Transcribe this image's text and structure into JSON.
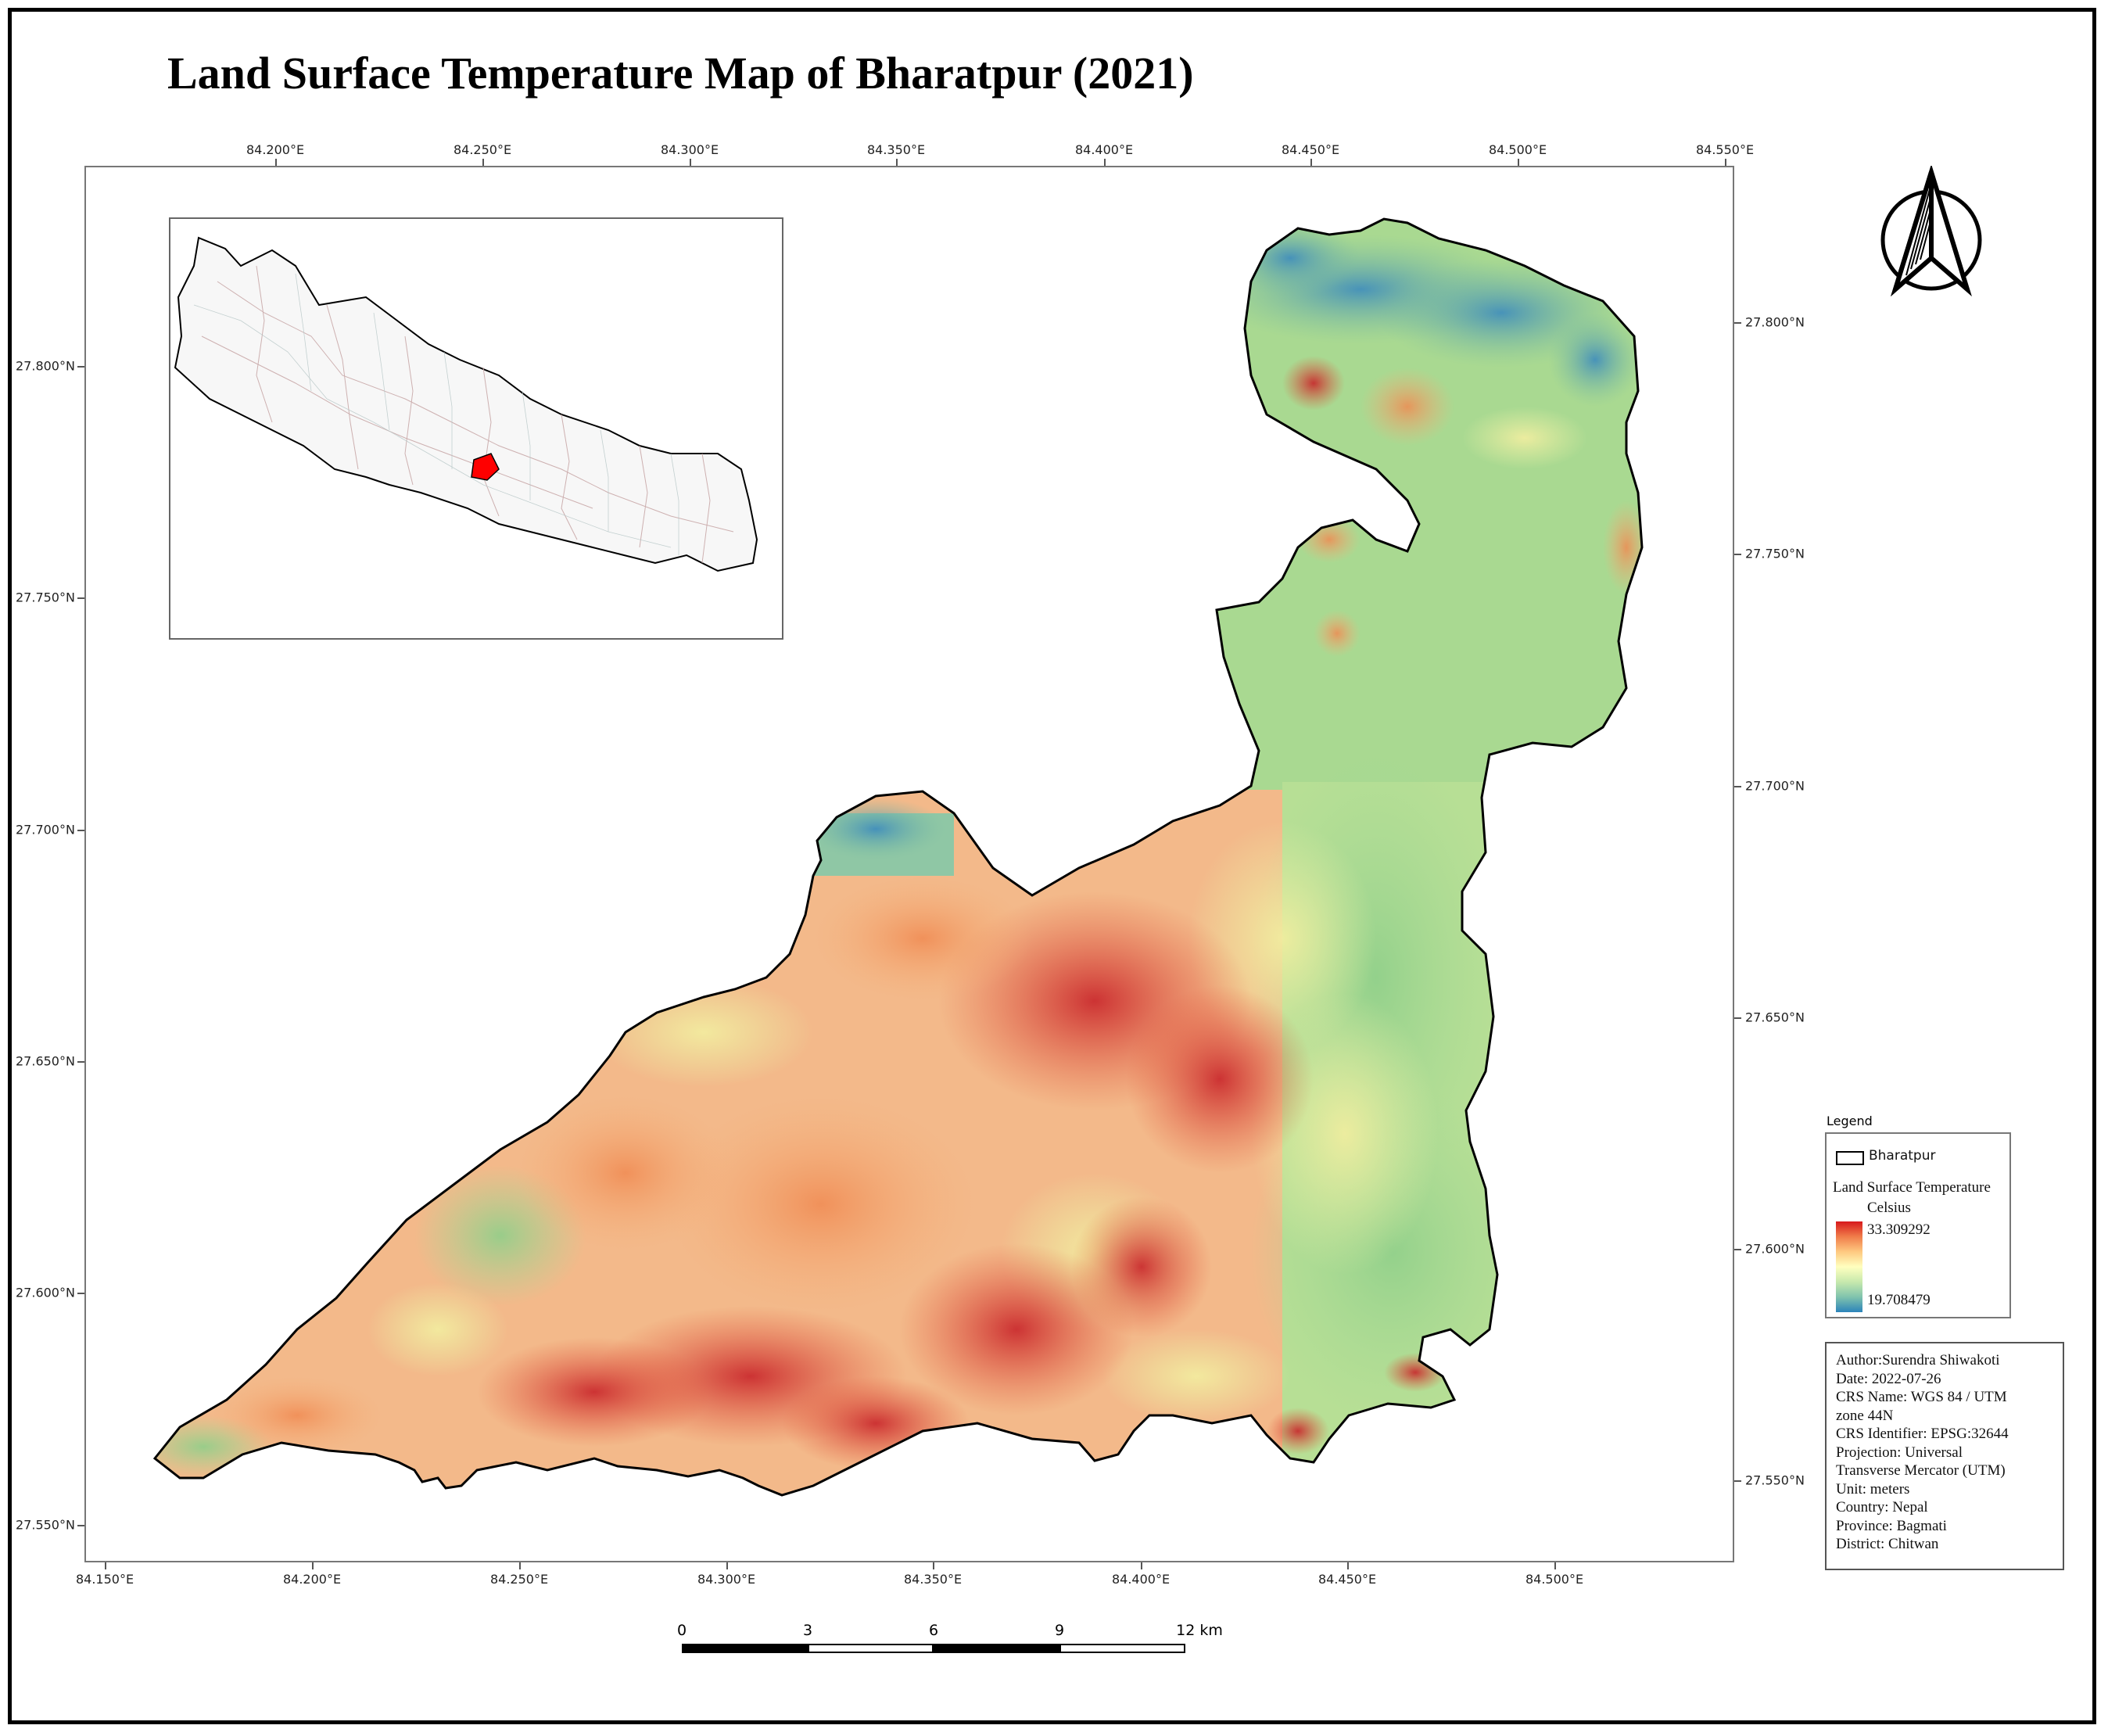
{
  "title": "Land Surface Temperature Map of Bharatpur (2021)",
  "top_ticks": [
    "84.200°E",
    "84.250°E",
    "84.300°E",
    "84.350°E",
    "84.400°E",
    "84.450°E",
    "84.500°E",
    "84.550°E"
  ],
  "bottom_ticks": [
    "84.150°E",
    "84.200°E",
    "84.250°E",
    "84.300°E",
    "84.350°E",
    "84.400°E",
    "84.450°E",
    "84.500°E"
  ],
  "left_ticks": [
    "27.800°N",
    "27.750°N",
    "27.700°N",
    "27.650°N",
    "27.600°N",
    "27.550°N"
  ],
  "right_ticks": [
    "27.800°N",
    "27.750°N",
    "27.700°N",
    "27.650°N",
    "27.600°N",
    "27.550°N"
  ],
  "legend": {
    "heading": "Legend",
    "boundary_label": "Bharatpur",
    "layer_title": "Land Surface Temperature",
    "unit": "Celsius",
    "max": "33.309292",
    "min": "19.708479",
    "ramp_colors": [
      "#d7191c",
      "#fdae61",
      "#ffffbf",
      "#abdda4",
      "#2b83ba"
    ]
  },
  "metadata": [
    "Author:Surendra Shiwakoti",
    "Date: 2022-07-26",
    "CRS Name: WGS 84 / UTM",
    "zone 44N",
    "CRS Identifier: EPSG:32644",
    "Projection: Universal",
    "Transverse Mercator (UTM)",
    "Unit: meters",
    "Country: Nepal",
    "Province: Bagmati",
    "District: Chitwan"
  ],
  "scale_bar": {
    "labels": [
      "0",
      "3",
      "6",
      "9",
      "12 km"
    ]
  },
  "north_arrow": {
    "icon": "north-arrow-icon"
  },
  "inset": {
    "country": "Nepal",
    "highlight_color": "#ff0000"
  }
}
